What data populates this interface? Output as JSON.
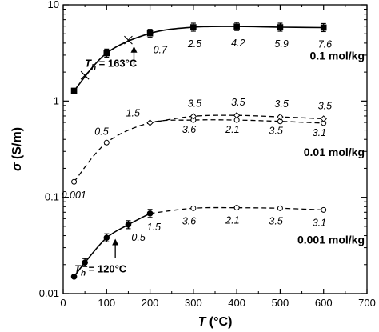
{
  "chart_data": {
    "type": "scatter",
    "xlabel": "T (°C)",
    "ylabel": "σ (S/m)",
    "xlim": [
      0,
      700
    ],
    "ylim": [
      0.01,
      10
    ],
    "yscale": "log",
    "grid": false,
    "x_ticks": [
      "0",
      "100",
      "200",
      "300",
      "400",
      "500",
      "600",
      "700"
    ],
    "y_ticks": [
      {
        "value": 0.01,
        "label": "0.01"
      },
      {
        "value": 0.1,
        "label": "0.1"
      },
      {
        "value": 1,
        "label": "1"
      },
      {
        "value": 10,
        "label": "10"
      }
    ],
    "series": [
      {
        "concentration": "0.1 mol/kg",
        "marker": "filled-square",
        "line": "solid",
        "x": [
          25,
          100,
          200,
          300,
          400,
          500,
          600
        ],
        "y": [
          1.28,
          3.15,
          5.05,
          5.85,
          5.95,
          5.85,
          5.8
        ],
        "point_labels": [
          "",
          "",
          "0.7",
          "2.5",
          "4.2",
          "5.9",
          "7.6"
        ],
        "extra_points": {
          "marker": "x",
          "x": [
            50,
            150
          ],
          "y": [
            1.85,
            4.3
          ]
        },
        "threshold": {
          "label": "T",
          "subscript": "h",
          "value": "= 163°C",
          "x": 163
        }
      },
      {
        "concentration": "0.01 mol/kg",
        "marker": "open-circle",
        "line": "dashed",
        "x": [
          25,
          100,
          300,
          400,
          500,
          600
        ],
        "y": [
          0.145,
          0.37,
          0.635,
          0.635,
          0.615,
          0.59
        ],
        "point_labels": [
          "0.001",
          "0.5",
          "3.6",
          "2.1",
          "3.5",
          "3.1"
        ]
      },
      {
        "concentration": "0.01 mol/kg",
        "marker": "open-diamond",
        "line": "dashed",
        "x": [
          200,
          300,
          400,
          500,
          600
        ],
        "y": [
          0.595,
          0.695,
          0.71,
          0.685,
          0.655
        ],
        "point_labels": [
          "1.5",
          "3.5",
          "3.5",
          "3.5",
          "3.5"
        ]
      },
      {
        "concentration": "0.001 mol/kg",
        "marker": "filled-circle",
        "line": "solid",
        "x": [
          25,
          50,
          100,
          150,
          200
        ],
        "y": [
          0.015,
          0.021,
          0.038,
          0.052,
          0.068
        ],
        "point_labels": [
          "",
          "",
          "",
          "0.5",
          "1.5"
        ],
        "threshold": {
          "label": "T",
          "subscript": "h",
          "value": "= 120°C",
          "x": 120
        }
      },
      {
        "concentration": "0.001 mol/kg",
        "marker": "open-circle",
        "line": "dashed",
        "x": [
          300,
          400,
          500,
          600
        ],
        "y": [
          0.077,
          0.078,
          0.077,
          0.074
        ],
        "point_labels": [
          "3.6",
          "2.1",
          "3.5",
          "3.1"
        ]
      }
    ]
  }
}
